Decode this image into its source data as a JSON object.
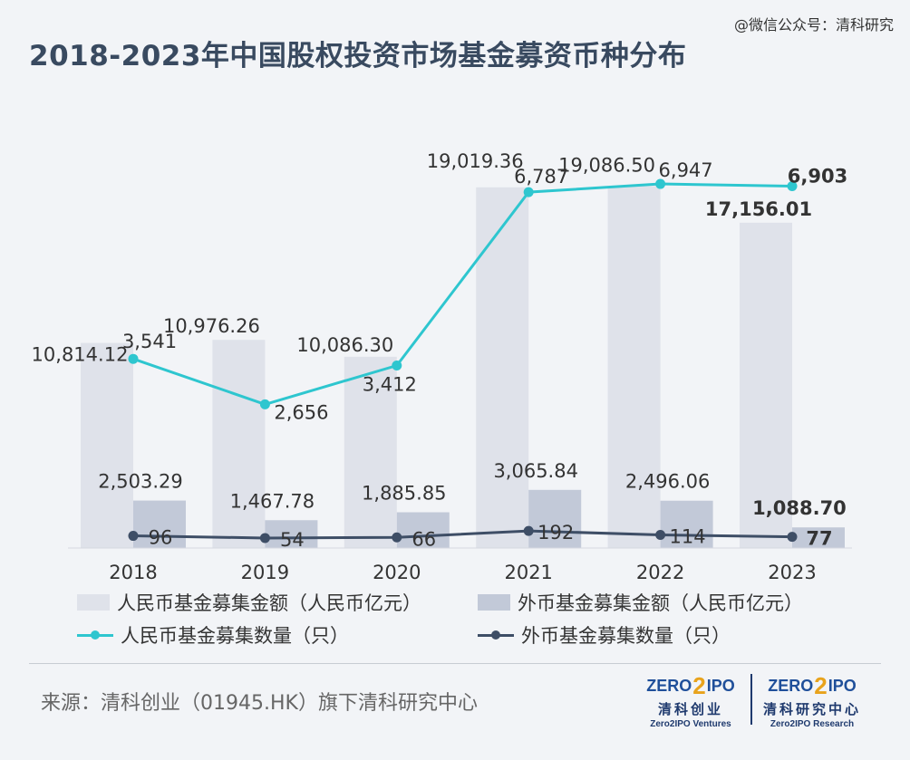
{
  "header": {
    "title": "2018-2023年中国股权投资市场基金募资币种分布",
    "watermark": "@微信公众号：清科研究"
  },
  "chart_data": {
    "type": "bar",
    "categories": [
      "2018",
      "2019",
      "2020",
      "2021",
      "2022",
      "2023"
    ],
    "series": [
      {
        "name": "人民币基金募集金额（人民币亿元）",
        "kind": "bar",
        "axis": "left",
        "color": "#dfe2ea",
        "values": [
          10814.12,
          10976.26,
          10086.3,
          19019.36,
          19086.5,
          17156.01
        ],
        "labels": [
          "10,814.12",
          "10,976.26",
          "10,086.30",
          "19,019.36",
          "19,086.50",
          "17,156.01"
        ]
      },
      {
        "name": "外币基金募集金额（人民币亿元）",
        "kind": "bar",
        "axis": "left",
        "color": "#c2c9d8",
        "values": [
          2503.29,
          1467.78,
          1885.85,
          3065.84,
          2496.06,
          1088.7
        ],
        "labels": [
          "2,503.29",
          "1,467.78",
          "1,885.85",
          "3,065.84",
          "2,496.06",
          "1,088.70"
        ]
      },
      {
        "name": "人民币基金募集数量（只）",
        "kind": "line",
        "axis": "right",
        "color": "#2ec6cf",
        "values": [
          3541,
          2656,
          3412,
          6787,
          6947,
          6903
        ],
        "labels": [
          "3,541",
          "2,656",
          "3,412",
          "6,787",
          "6,947",
          "6,903"
        ]
      },
      {
        "name": "外币基金募集数量（只）",
        "kind": "line",
        "axis": "right",
        "color": "#3e4e66",
        "values": [
          96,
          54,
          66,
          192,
          114,
          77
        ],
        "labels": [
          "96",
          "54",
          "66",
          "192",
          "114",
          "77"
        ]
      }
    ],
    "highlight_category": "2023"
  },
  "footer": {
    "source": "来源：清科创业（01945.HK）旗下清科研究中心",
    "logo_left": {
      "word_a": "ZERO",
      "digit": "2",
      "word_b": "IPO",
      "cn": "清科创业",
      "en": "Zero2IPO Ventures"
    },
    "logo_right": {
      "word_a": "ZERO",
      "digit": "2",
      "word_b": "IPO",
      "cn": "清科研究中心",
      "en": "Zero2IPO Research"
    }
  }
}
